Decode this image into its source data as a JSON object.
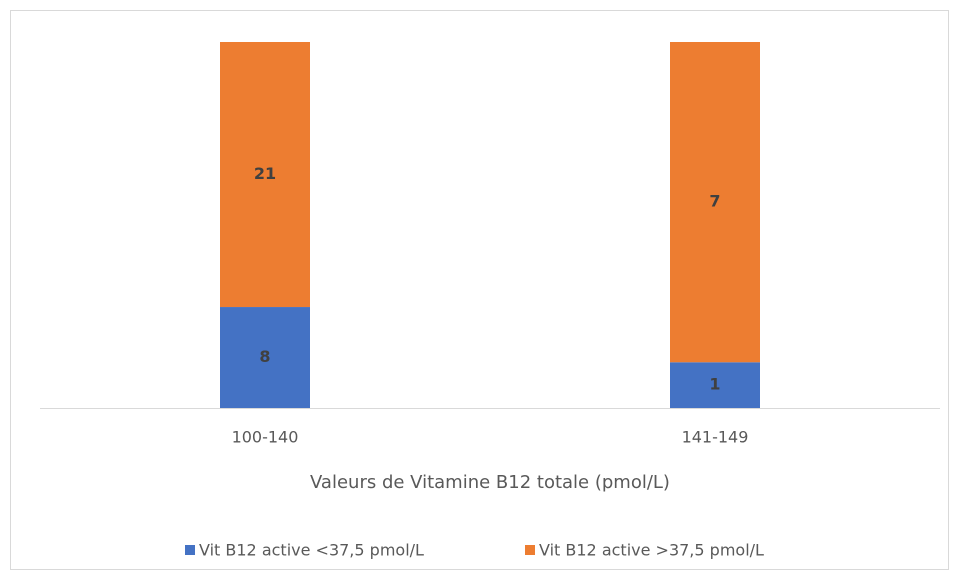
{
  "chart_data": {
    "type": "bar",
    "stack": "percent",
    "x_label": "Valeurs de Vitamine B12 totale (pmol/L)",
    "categories": [
      "100-140",
      "141-149"
    ],
    "series": [
      {
        "name": "Vit B12 active <37,5 pmol/L",
        "color": "#4472c4",
        "values": [
          8,
          1
        ]
      },
      {
        "name": "Vit B12 active >37,5 pmol/L",
        "color": "#ed7d31",
        "values": [
          21,
          7
        ]
      }
    ],
    "legend": "bottom"
  }
}
